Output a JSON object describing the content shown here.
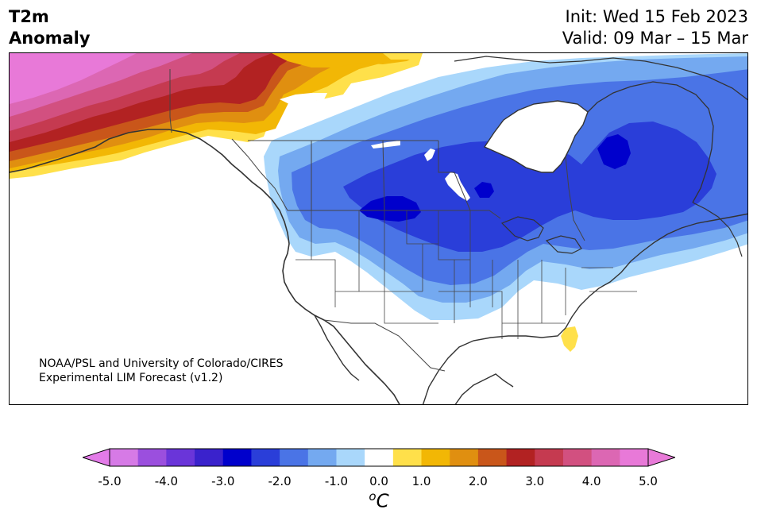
{
  "title": {
    "variable": "T2m",
    "quantity": "Anomaly",
    "init": "Init: Wed 15 Feb 2023",
    "valid": "Valid: 09 Mar – 15 Mar"
  },
  "credit": {
    "line1": "NOAA/PSL and University of Colorado/CIRES",
    "line2": "Experimental LIM Forecast (v1.2)"
  },
  "colorbar": {
    "unit_sup": "o",
    "unit_base": "C",
    "tick_labels": [
      "-5.0",
      "-4.0",
      "-3.0",
      "-2.0",
      "-1.0",
      "0.0",
      "1.0",
      "2.0",
      "3.0",
      "4.0",
      "5.0"
    ],
    "levels": [
      -5.0,
      -4.5,
      -4.0,
      -3.5,
      -3.0,
      -2.5,
      -2.0,
      -1.5,
      -1.0,
      -0.5,
      0.5,
      1.0,
      1.5,
      2.0,
      2.5,
      3.0,
      3.5,
      4.0,
      4.5,
      5.0
    ],
    "colors": [
      "#d67ae6",
      "#9b4fde",
      "#6a35d9",
      "#3a22cc",
      "#0000cc",
      "#2a3ed9",
      "#4a74e6",
      "#74a9f0",
      "#a9d7fb",
      "#ffffff",
      "#ffe04a",
      "#f2b705",
      "#e08f10",
      "#c9561a",
      "#b22222",
      "#c53a50",
      "#d25080",
      "#dc67b3",
      "#e879d8"
    ],
    "under_color": "#e37be8",
    "over_color": "#e87ad8"
  },
  "map": {
    "palette": {
      "m4_5": "#9b4fde",
      "m3": "#0000cc",
      "m2_5": "#2a3ed9",
      "m2": "#4a74e6",
      "m1_5": "#74a9f0",
      "m1": "#a9d7fb",
      "p0_5": "#ffe04a",
      "p1": "#f2b705",
      "p1_5": "#e08f10",
      "p2": "#c9561a",
      "p3": "#b22222",
      "p3_5": "#c53a50",
      "p4": "#d25080",
      "p4_5": "#dc67b3",
      "p5": "#e879d8",
      "coast": "#333333",
      "border": "#444444"
    }
  }
}
